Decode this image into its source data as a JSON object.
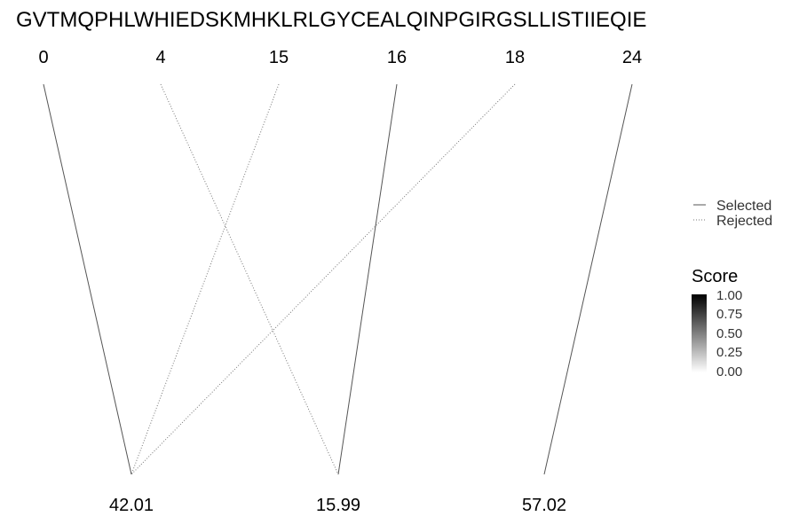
{
  "sequence": "GVTMQPHLWHIEDSKMHKLRLGYCEALQINPGIRGSLLISTIIEQIE",
  "top_nodes": [
    "0",
    "4",
    "15",
    "16",
    "18",
    "24"
  ],
  "bottom_nodes": [
    "42.01",
    "15.99",
    "57.02"
  ],
  "edges": [
    {
      "from": 0,
      "to": 0,
      "status": "selected"
    },
    {
      "from": 1,
      "to": 1,
      "status": "rejected"
    },
    {
      "from": 2,
      "to": 0,
      "status": "rejected"
    },
    {
      "from": 3,
      "to": 1,
      "status": "selected"
    },
    {
      "from": 4,
      "to": 0,
      "status": "rejected"
    },
    {
      "from": 5,
      "to": 2,
      "status": "selected"
    }
  ],
  "legend_lines": {
    "selected_label": "Selected",
    "rejected_label": "Rejected"
  },
  "legend_score": {
    "title": "Score",
    "ticks": [
      "1.00",
      "0.75",
      "0.50",
      "0.25",
      "0.00"
    ],
    "color_high": "#000000",
    "color_low": "#ffffff"
  },
  "colors": {
    "selected_line": "#555555",
    "rejected_line": "#777777"
  }
}
